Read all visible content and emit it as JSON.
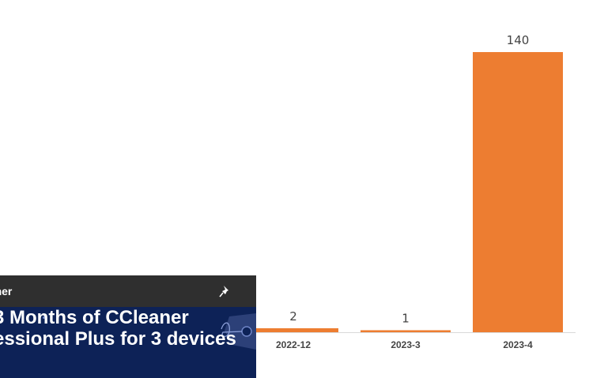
{
  "chart_data": {
    "type": "bar",
    "categories": [
      "2022-12",
      "2023-3",
      "2023-4"
    ],
    "values": [
      2,
      1,
      140
    ],
    "data_labels": [
      "2",
      "1",
      "140"
    ],
    "color": "#ed7d31",
    "grid": false,
    "legend": "none"
  },
  "popup": {
    "title": "eaner",
    "headline_line1": "3 Months of CCleaner",
    "headline_line2": "essional Plus for 3 devices",
    "pin_icon": "pin-icon",
    "header_color": "#2f2f2f",
    "body_color": "#0d2257"
  }
}
